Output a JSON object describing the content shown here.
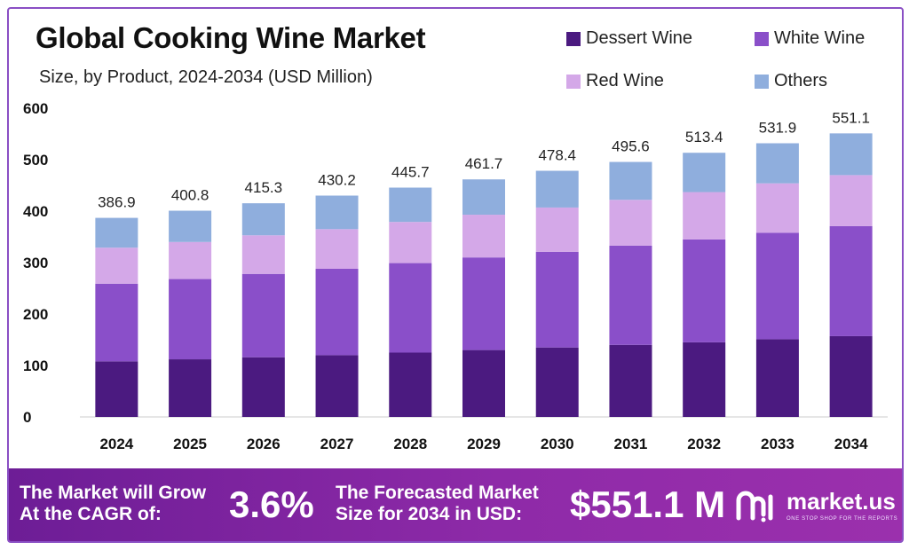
{
  "title": "Global Cooking Wine Market",
  "subtitle": "Size, by Product, 2024-2034 (USD Million)",
  "colors": {
    "dessert_wine": "#4b1a80",
    "white_wine": "#8a4fc9",
    "red_wine": "#d4a8e8",
    "others": "#8faedd",
    "accent": "#8a4fc4"
  },
  "legend": [
    {
      "name": "Dessert Wine",
      "color": "#4b1a80"
    },
    {
      "name": "White Wine",
      "color": "#8a4fc9"
    },
    {
      "name": "Red Wine",
      "color": "#d4a8e8"
    },
    {
      "name": "Others",
      "color": "#8faedd"
    }
  ],
  "chart_data": {
    "type": "bar",
    "stacked": true,
    "title": "Global Cooking Wine Market",
    "subtitle": "Size, by Product, 2024-2034 (USD Million)",
    "xlabel": "",
    "ylabel": "",
    "ylim": [
      0,
      600
    ],
    "yticks": [
      "0",
      "100",
      "200",
      "300",
      "400",
      "500",
      "600"
    ],
    "grid": false,
    "legend_position": "top-right",
    "categories": [
      "2024",
      "2025",
      "2026",
      "2027",
      "2028",
      "2029",
      "2030",
      "2031",
      "2032",
      "2033",
      "2034"
    ],
    "totals": [
      "386.9",
      "400.8",
      "415.3",
      "430.2",
      "445.7",
      "461.7",
      "478.4",
      "495.6",
      "513.4",
      "531.9",
      "551.1"
    ],
    "series": [
      {
        "name": "Dessert Wine",
        "values": [
          108,
          112,
          116,
          120,
          125,
          130,
          135,
          140,
          145,
          151,
          157
        ]
      },
      {
        "name": "White Wine",
        "values": [
          151,
          156,
          162,
          168,
          174,
          180,
          186,
          193,
          200,
          207,
          214
        ]
      },
      {
        "name": "Red Wine",
        "values": [
          70,
          72,
          75,
          77,
          80,
          83,
          86,
          89,
          92,
          96,
          99
        ]
      },
      {
        "name": "Others",
        "values": [
          57.9,
          60.8,
          62.3,
          65.2,
          66.7,
          68.7,
          71.4,
          73.6,
          76.4,
          77.9,
          81.1
        ]
      }
    ]
  },
  "banner": {
    "cagr_label_line1": "The Market will Grow",
    "cagr_label_line2": "At the CAGR of:",
    "cagr_value": "3.6%",
    "forecast_label_line1": "The Forecasted Market",
    "forecast_label_line2": "Size for 2034 in USD:",
    "forecast_value": "$551.1 M"
  },
  "brand": {
    "name": "market.us",
    "tagline": "ONE STOP SHOP FOR THE REPORTS",
    "icon": "market-us-logo-icon"
  }
}
